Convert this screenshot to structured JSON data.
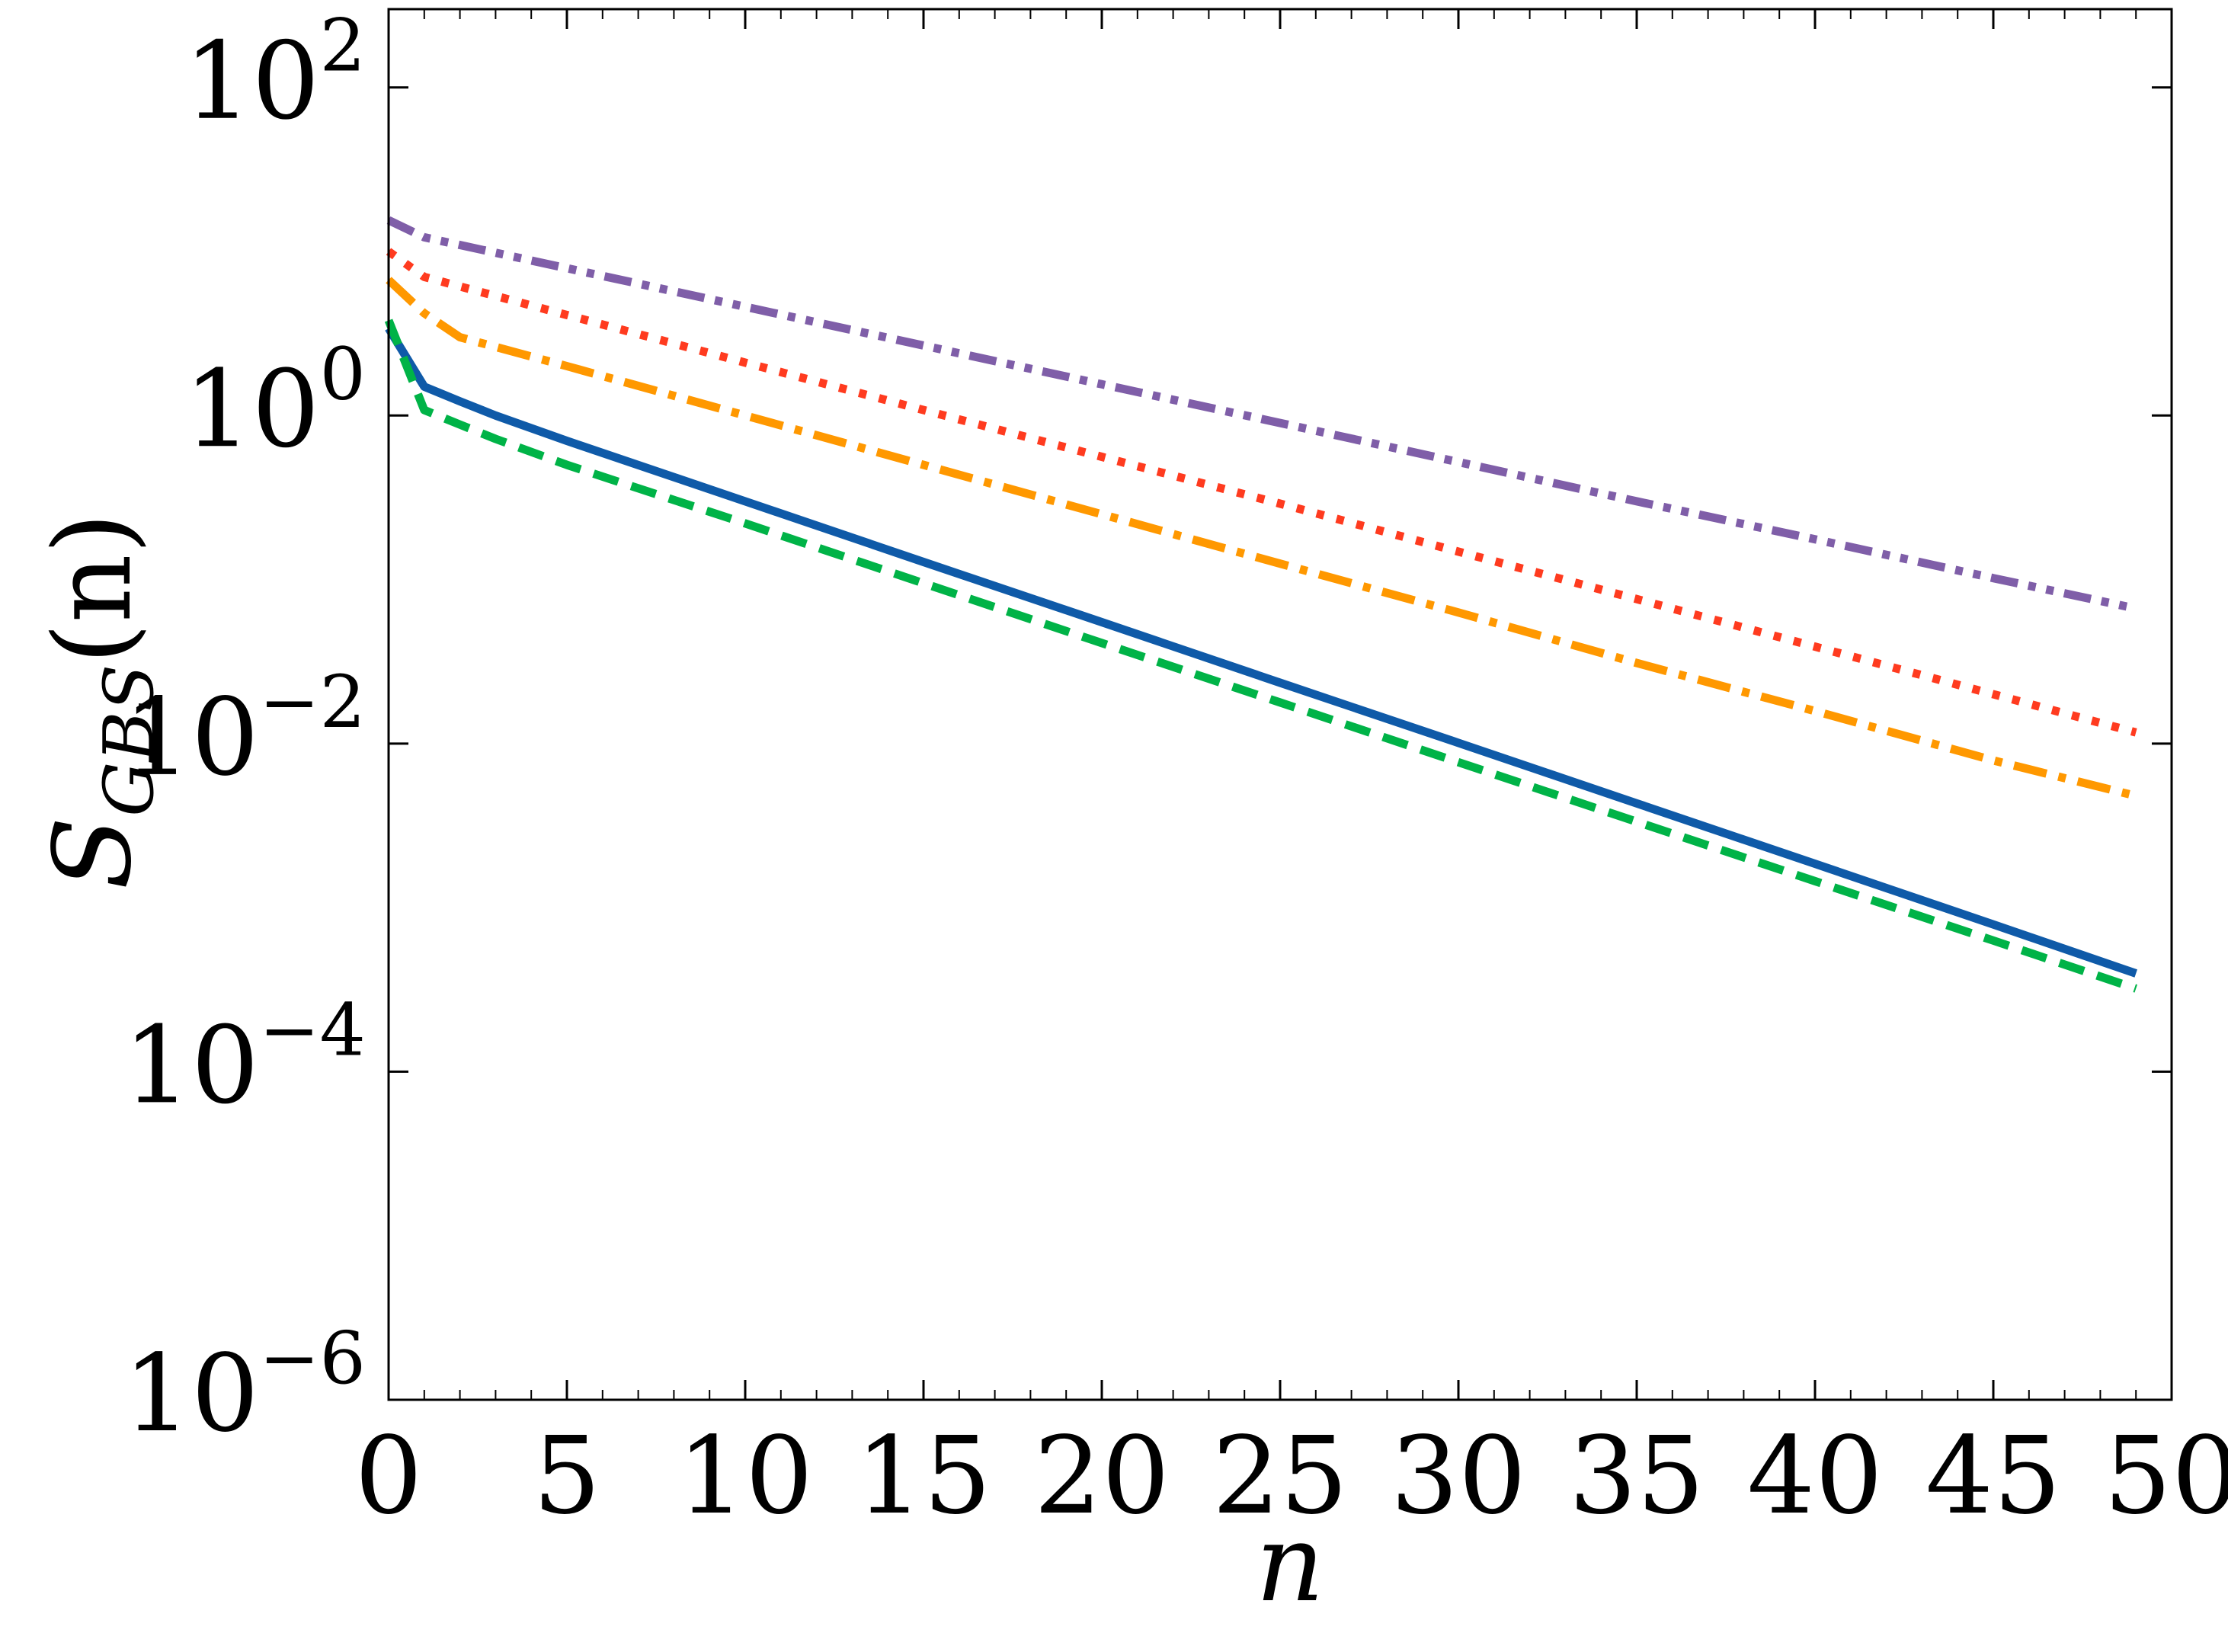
{
  "chart_data": {
    "type": "line",
    "xlabel": "n",
    "ylabel": {
      "base": "S",
      "subscript": "GBS",
      "arg": "(n)"
    },
    "xlim": [
      0,
      50
    ],
    "ylim": [
      1e-06,
      300
    ],
    "yscale": "log",
    "grid": false,
    "legend": "none",
    "x_ticks": [
      0,
      5,
      10,
      15,
      20,
      25,
      30,
      35,
      40,
      45,
      50
    ],
    "y_ticks": [
      {
        "base": "10",
        "exp": "2",
        "value": 100
      },
      {
        "base": "10",
        "exp": "0",
        "value": 1
      },
      {
        "base": "10",
        "exp": "−2",
        "value": 0.01
      },
      {
        "base": "10",
        "exp": "−4",
        "value": 0.0001
      },
      {
        "base": "10",
        "exp": "−6",
        "value": 1e-06
      }
    ],
    "series": [
      {
        "color": "#7f5ea8",
        "dash": "dash-dot-dot",
        "points": [
          [
            0,
            15.5
          ],
          [
            1,
            12.2
          ],
          [
            5,
            7.9
          ],
          [
            10,
            4.6
          ],
          [
            15,
            2.67
          ],
          [
            20,
            1.55
          ],
          [
            25,
            0.9
          ],
          [
            30,
            0.52
          ],
          [
            35,
            0.3
          ],
          [
            40,
            0.176
          ],
          [
            45,
            0.102
          ],
          [
            49,
            0.0666
          ]
        ]
      },
      {
        "color": "#ff3b1f",
        "dash": "dotted",
        "points": [
          [
            0,
            10.0
          ],
          [
            1,
            7.0
          ],
          [
            5,
            4.1
          ],
          [
            10,
            2.1
          ],
          [
            15,
            1.08
          ],
          [
            20,
            0.56
          ],
          [
            25,
            0.29
          ],
          [
            30,
            0.148
          ],
          [
            35,
            0.076
          ],
          [
            40,
            0.039
          ],
          [
            45,
            0.02
          ],
          [
            49,
            0.0117
          ]
        ]
      },
      {
        "color": "#ff9800",
        "dash": "dash-dot",
        "points": [
          [
            0,
            6.7
          ],
          [
            1,
            4.2
          ],
          [
            2,
            3.0
          ],
          [
            5,
            2.0
          ],
          [
            10,
            1.0
          ],
          [
            15,
            0.5
          ],
          [
            20,
            0.25
          ],
          [
            25,
            0.125
          ],
          [
            30,
            0.063
          ],
          [
            35,
            0.031
          ],
          [
            40,
            0.0158
          ],
          [
            45,
            0.0079
          ],
          [
            49,
            0.0048
          ]
        ]
      },
      {
        "color": "#0f5aa8",
        "dash": "solid",
        "points": [
          [
            0,
            3.4
          ],
          [
            1,
            1.5
          ],
          [
            2,
            1.22
          ],
          [
            3,
            1.0
          ],
          [
            5,
            0.7
          ],
          [
            10,
            0.3
          ],
          [
            15,
            0.128
          ],
          [
            20,
            0.055
          ],
          [
            25,
            0.0235
          ],
          [
            30,
            0.0101
          ],
          [
            35,
            0.00432
          ],
          [
            40,
            0.00185
          ],
          [
            45,
            0.00079
          ],
          [
            49,
            0.000397
          ]
        ]
      },
      {
        "color": "#00b347",
        "dash": "dashed",
        "points": [
          [
            0,
            3.8
          ],
          [
            1,
            1.08
          ],
          [
            2,
            0.88
          ],
          [
            3,
            0.72
          ],
          [
            5,
            0.5
          ],
          [
            10,
            0.22
          ],
          [
            15,
            0.095
          ],
          [
            20,
            0.041
          ],
          [
            25,
            0.0178
          ],
          [
            30,
            0.0077
          ],
          [
            35,
            0.00334
          ],
          [
            40,
            0.00145
          ],
          [
            45,
            0.00063
          ],
          [
            49,
            0.000321
          ]
        ]
      }
    ]
  }
}
